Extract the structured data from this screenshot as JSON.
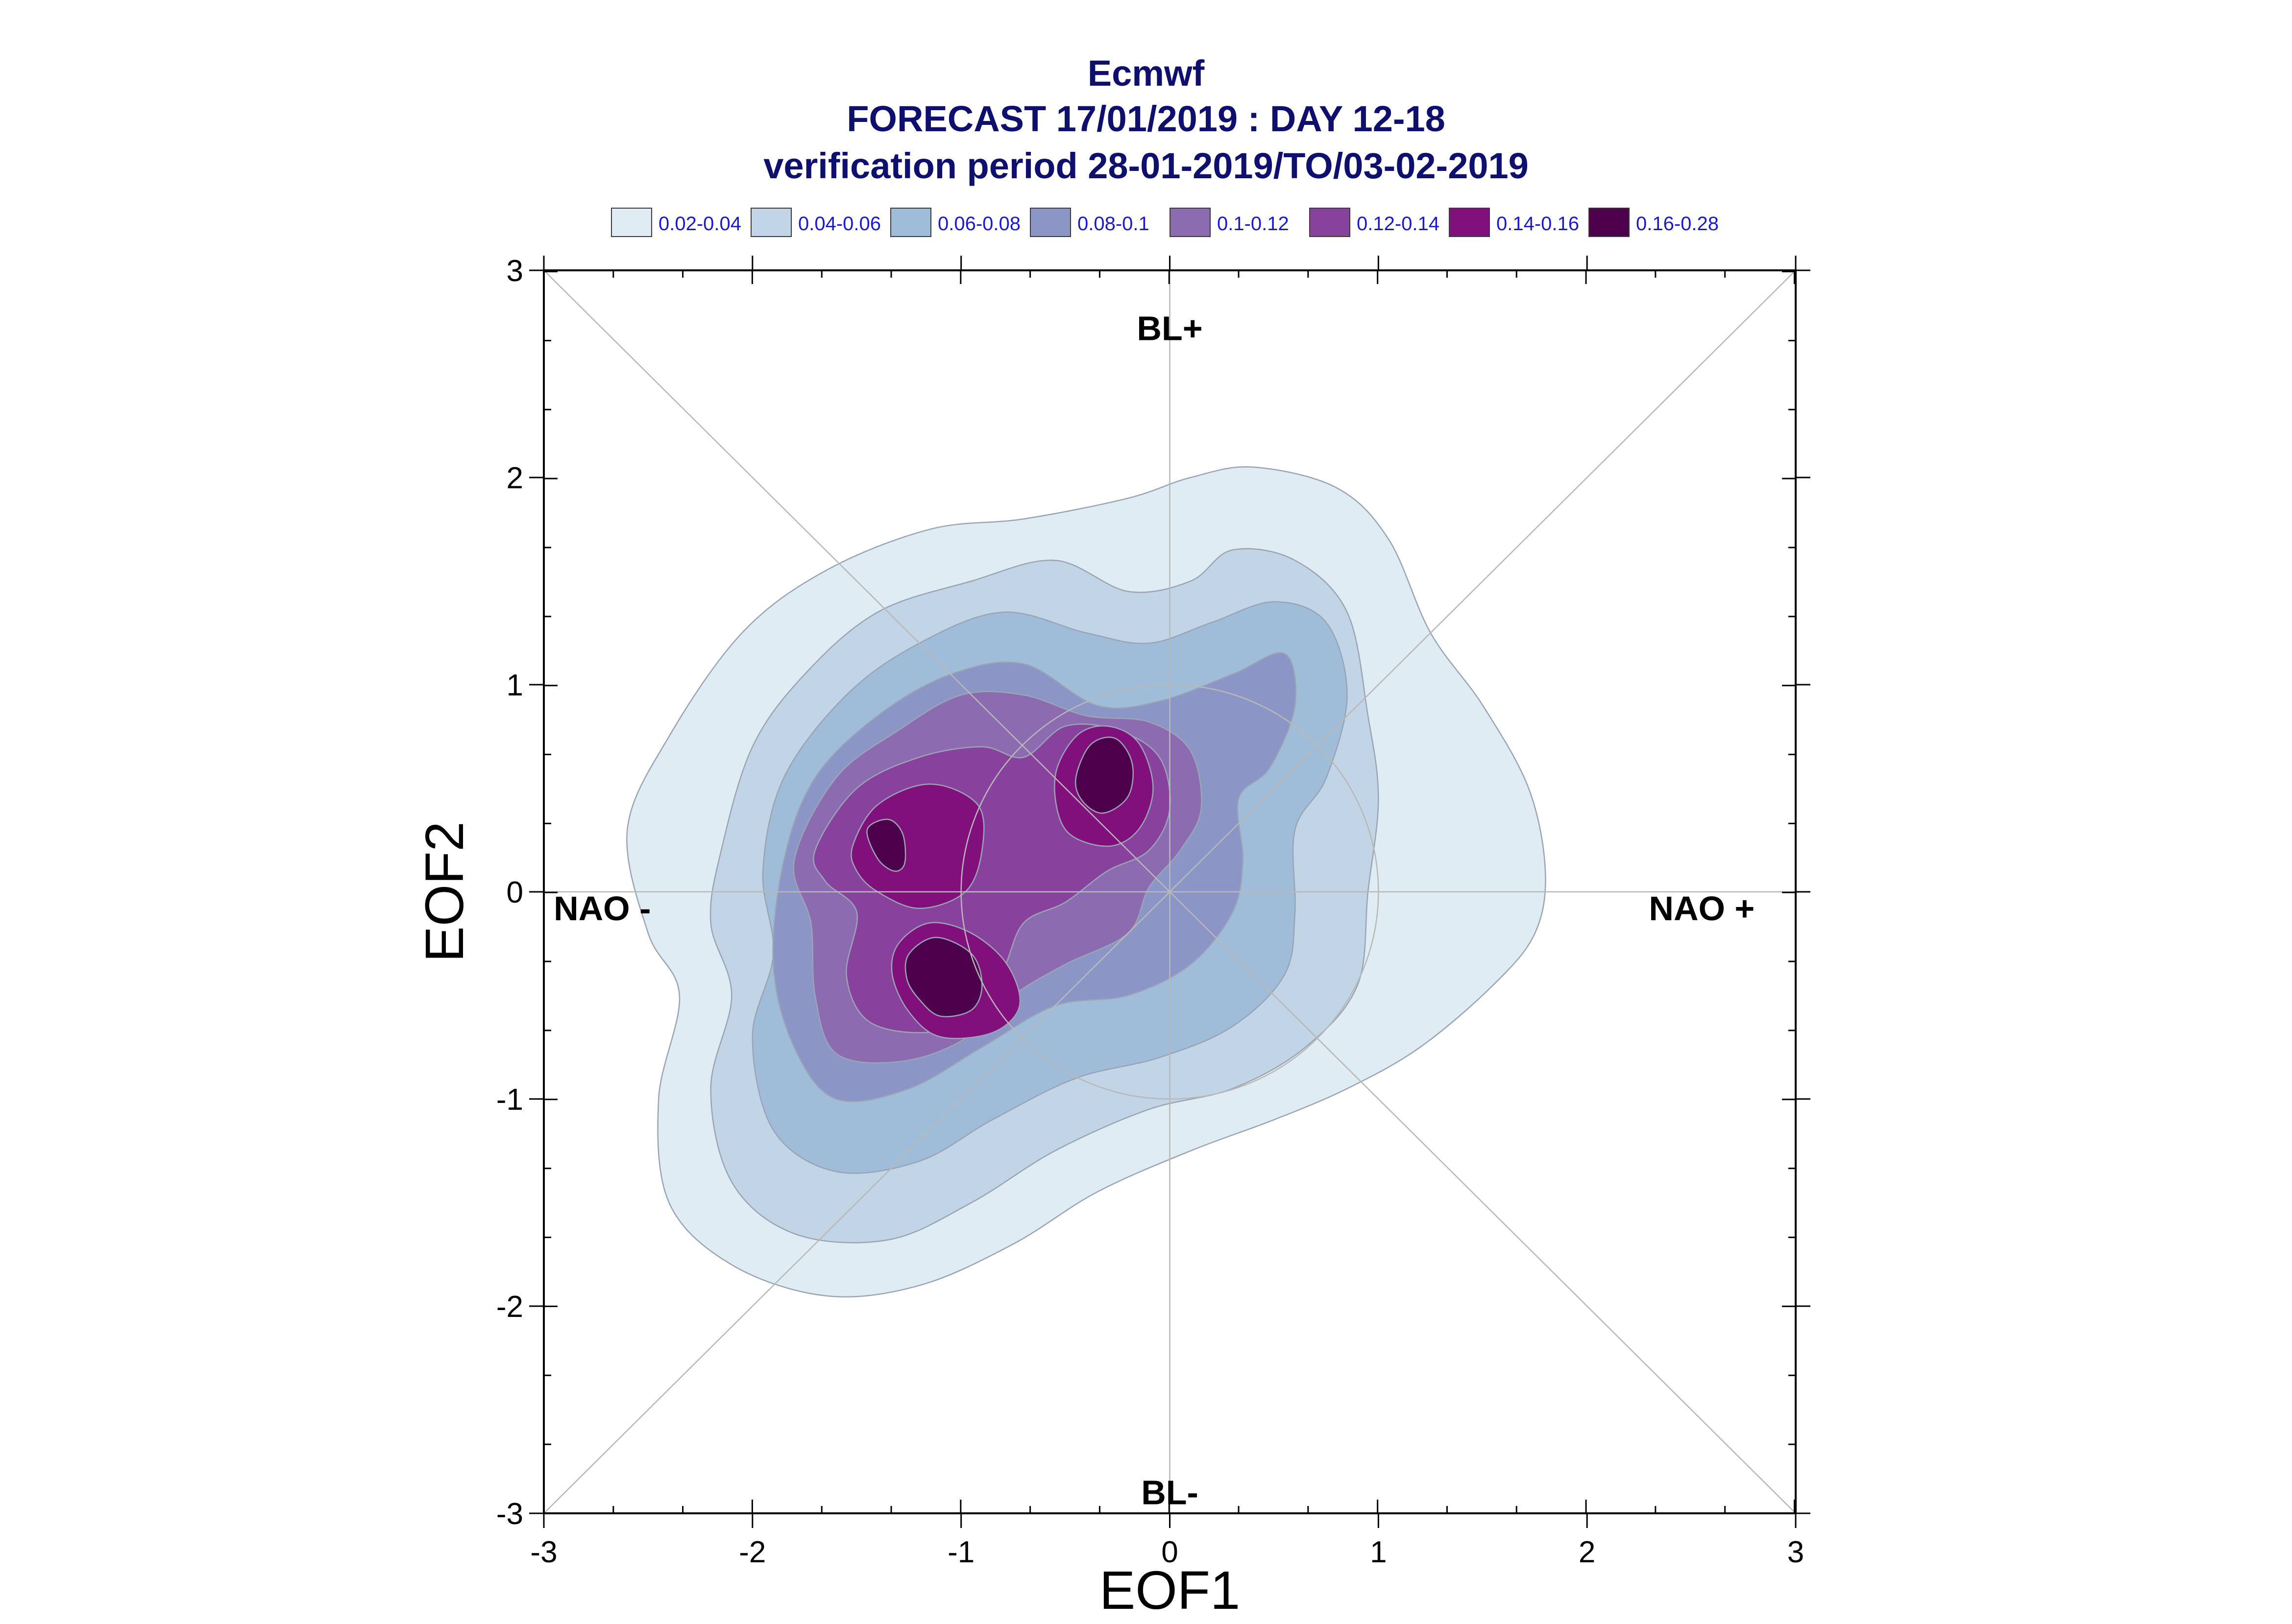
{
  "chart_data": {
    "type": "contour",
    "title_lines": [
      "Ecmwf",
      "FORECAST 17/01/2019 : DAY 12-18",
      "verification period 28-01-2019/TO/03-02-2019"
    ],
    "xlabel": "EOF1",
    "ylabel": "EOF2",
    "xlim": [
      -3,
      3
    ],
    "ylim": [
      -3,
      3
    ],
    "x_ticks": [
      -3,
      -2,
      -1,
      0,
      1,
      2,
      3
    ],
    "y_ticks": [
      -3,
      -2,
      -1,
      0,
      1,
      2,
      3
    ],
    "x_tick_labels": [
      "-3",
      "-2",
      "-1",
      "0",
      "1",
      "2",
      "3"
    ],
    "y_tick_labels": [
      "-3",
      "-2",
      "-1",
      "0",
      "1",
      "2",
      "3"
    ],
    "minor_tick_step": 0.333,
    "regime_labels": [
      {
        "text": "BL+",
        "x": 0,
        "y": 2.72
      },
      {
        "text": "BL-",
        "x": 0,
        "y": -2.9
      },
      {
        "text": "NAO -",
        "x": -2.72,
        "y": -0.08
      },
      {
        "text": "NAO +",
        "x": 2.55,
        "y": -0.08
      }
    ],
    "reference_lines": {
      "diagonals": true,
      "axes_through_origin": true,
      "circle": {
        "cx": 0,
        "cy": 0,
        "r": 1
      }
    },
    "legend": {
      "placement": "top",
      "entries": [
        {
          "label": "0.02-0.04",
          "color": "#e0ecf4"
        },
        {
          "label": "0.04-0.06",
          "color": "#c2d5e6"
        },
        {
          "label": "0.06-0.08",
          "color": "#9fbcd9"
        },
        {
          "label": "0.08-0.1",
          "color": "#8c96c6"
        },
        {
          "label": "0.1-0.12",
          "color": "#8c6bb1"
        },
        {
          "label": "0.12-0.14",
          "color": "#88419d"
        },
        {
          "label": "0.14-0.16",
          "color": "#810f7c"
        },
        {
          "label": "0.16-0.28",
          "color": "#4d004b"
        }
      ]
    },
    "contour_levels": [
      {
        "range": "0.02-0.04",
        "color": "#e0ecf4",
        "polygons": [
          [
            [
              -2.6,
              0.3
            ],
            [
              -2.4,
              0.75
            ],
            [
              -2.05,
              1.25
            ],
            [
              -1.65,
              1.55
            ],
            [
              -1.15,
              1.75
            ],
            [
              -0.7,
              1.8
            ],
            [
              -0.2,
              1.9
            ],
            [
              0.1,
              2.0
            ],
            [
              0.4,
              2.05
            ],
            [
              0.8,
              1.95
            ],
            [
              1.05,
              1.7
            ],
            [
              1.25,
              1.25
            ],
            [
              1.5,
              0.9
            ],
            [
              1.72,
              0.5
            ],
            [
              1.8,
              0.1
            ],
            [
              1.75,
              -0.2
            ],
            [
              1.55,
              -0.45
            ],
            [
              1.2,
              -0.75
            ],
            [
              0.85,
              -0.95
            ],
            [
              0.5,
              -1.1
            ],
            [
              0.1,
              -1.25
            ],
            [
              -0.35,
              -1.45
            ],
            [
              -0.75,
              -1.7
            ],
            [
              -1.2,
              -1.9
            ],
            [
              -1.65,
              -1.95
            ],
            [
              -2.1,
              -1.8
            ],
            [
              -2.4,
              -1.5
            ],
            [
              -2.45,
              -1.0
            ],
            [
              -2.35,
              -0.5
            ],
            [
              -2.5,
              -0.2
            ]
          ]
        ]
      },
      {
        "range": "0.04-0.06",
        "color": "#c2d5e6",
        "polygons": [
          [
            [
              -2.15,
              0.2
            ],
            [
              -2.0,
              0.7
            ],
            [
              -1.75,
              1.05
            ],
            [
              -1.4,
              1.35
            ],
            [
              -0.95,
              1.5
            ],
            [
              -0.55,
              1.6
            ],
            [
              -0.2,
              1.45
            ],
            [
              0.1,
              1.5
            ],
            [
              0.3,
              1.65
            ],
            [
              0.6,
              1.6
            ],
            [
              0.85,
              1.35
            ],
            [
              0.95,
              0.85
            ],
            [
              1.0,
              0.45
            ],
            [
              0.95,
              0.0
            ],
            [
              0.9,
              -0.45
            ],
            [
              0.65,
              -0.75
            ],
            [
              0.3,
              -0.95
            ],
            [
              -0.1,
              -1.05
            ],
            [
              -0.55,
              -1.25
            ],
            [
              -0.95,
              -1.5
            ],
            [
              -1.35,
              -1.68
            ],
            [
              -1.8,
              -1.65
            ],
            [
              -2.1,
              -1.4
            ],
            [
              -2.2,
              -0.95
            ],
            [
              -2.1,
              -0.5
            ],
            [
              -2.2,
              -0.15
            ]
          ]
        ]
      },
      {
        "range": "0.06-0.08",
        "color": "#9fbcd9",
        "polygons": [
          [
            [
              -1.95,
              0.1
            ],
            [
              -1.85,
              0.55
            ],
            [
              -1.55,
              0.95
            ],
            [
              -1.2,
              1.2
            ],
            [
              -0.8,
              1.35
            ],
            [
              -0.4,
              1.25
            ],
            [
              -0.1,
              1.2
            ],
            [
              0.2,
              1.3
            ],
            [
              0.5,
              1.4
            ],
            [
              0.75,
              1.3
            ],
            [
              0.85,
              0.95
            ],
            [
              0.75,
              0.55
            ],
            [
              0.6,
              0.3
            ],
            [
              0.6,
              -0.1
            ],
            [
              0.55,
              -0.4
            ],
            [
              0.3,
              -0.65
            ],
            [
              -0.05,
              -0.8
            ],
            [
              -0.45,
              -0.9
            ],
            [
              -0.85,
              -1.1
            ],
            [
              -1.2,
              -1.3
            ],
            [
              -1.6,
              -1.35
            ],
            [
              -1.9,
              -1.15
            ],
            [
              -2.0,
              -0.7
            ],
            [
              -1.9,
              -0.3
            ]
          ]
        ]
      },
      {
        "range": "0.08-0.1",
        "color": "#8c96c6",
        "polygons": [
          [
            [
              -1.85,
              0.15
            ],
            [
              -1.7,
              0.55
            ],
            [
              -1.4,
              0.85
            ],
            [
              -1.05,
              1.05
            ],
            [
              -0.7,
              1.1
            ],
            [
              -0.35,
              0.9
            ],
            [
              -0.05,
              0.92
            ],
            [
              0.3,
              1.05
            ],
            [
              0.55,
              1.15
            ],
            [
              0.6,
              0.9
            ],
            [
              0.48,
              0.6
            ],
            [
              0.33,
              0.45
            ],
            [
              0.35,
              0.15
            ],
            [
              0.3,
              -0.1
            ],
            [
              0.1,
              -0.35
            ],
            [
              -0.2,
              -0.5
            ],
            [
              -0.55,
              -0.55
            ],
            [
              -0.9,
              -0.75
            ],
            [
              -1.25,
              -0.95
            ],
            [
              -1.6,
              -1.0
            ],
            [
              -1.8,
              -0.75
            ],
            [
              -1.9,
              -0.35
            ]
          ]
        ]
      },
      {
        "range": "0.1-0.12",
        "color": "#8c6bb1",
        "polygons": [
          [
            [
              -1.8,
              0.15
            ],
            [
              -1.6,
              0.55
            ],
            [
              -1.3,
              0.78
            ],
            [
              -1.0,
              0.95
            ],
            [
              -0.7,
              0.95
            ],
            [
              -0.4,
              0.85
            ],
            [
              -0.1,
              0.82
            ],
            [
              0.1,
              0.68
            ],
            [
              0.15,
              0.4
            ],
            [
              0.05,
              0.2
            ],
            [
              -0.1,
              0.02
            ],
            [
              -0.2,
              -0.2
            ],
            [
              -0.5,
              -0.35
            ],
            [
              -0.75,
              -0.5
            ],
            [
              -1.0,
              -0.72
            ],
            [
              -1.3,
              -0.82
            ],
            [
              -1.6,
              -0.78
            ],
            [
              -1.7,
              -0.5
            ],
            [
              -1.72,
              -0.15
            ]
          ]
        ]
      },
      {
        "range": "0.12-0.14",
        "color": "#88419d",
        "polygons": [
          [
            [
              -1.7,
              0.2
            ],
            [
              -1.5,
              0.5
            ],
            [
              -1.2,
              0.65
            ],
            [
              -0.9,
              0.7
            ],
            [
              -0.7,
              0.65
            ],
            [
              -0.5,
              0.8
            ],
            [
              -0.25,
              0.78
            ],
            [
              -0.05,
              0.65
            ],
            [
              0.0,
              0.4
            ],
            [
              -0.1,
              0.2
            ],
            [
              -0.3,
              0.1
            ],
            [
              -0.5,
              -0.05
            ],
            [
              -0.7,
              -0.15
            ],
            [
              -0.8,
              -0.38
            ],
            [
              -0.95,
              -0.62
            ],
            [
              -1.2,
              -0.68
            ],
            [
              -1.45,
              -0.62
            ],
            [
              -1.55,
              -0.4
            ],
            [
              -1.5,
              -0.1
            ],
            [
              -1.65,
              0.05
            ]
          ]
        ]
      },
      {
        "range": "0.14-0.16",
        "color": "#810f7c",
        "polygons": [
          [
            [
              -1.52,
              0.22
            ],
            [
              -1.4,
              0.42
            ],
            [
              -1.15,
              0.52
            ],
            [
              -0.92,
              0.42
            ],
            [
              -0.9,
              0.2
            ],
            [
              -0.98,
              0.0
            ],
            [
              -1.2,
              -0.08
            ],
            [
              -1.4,
              0.0
            ],
            [
              -1.5,
              0.1
            ]
          ],
          [
            [
              -0.55,
              0.55
            ],
            [
              -0.45,
              0.75
            ],
            [
              -0.3,
              0.8
            ],
            [
              -0.15,
              0.72
            ],
            [
              -0.08,
              0.5
            ],
            [
              -0.15,
              0.3
            ],
            [
              -0.3,
              0.22
            ],
            [
              -0.5,
              0.3
            ]
          ],
          [
            [
              -1.3,
              -0.25
            ],
            [
              -1.15,
              -0.15
            ],
            [
              -0.95,
              -0.2
            ],
            [
              -0.78,
              -0.35
            ],
            [
              -0.72,
              -0.55
            ],
            [
              -0.85,
              -0.68
            ],
            [
              -1.1,
              -0.7
            ],
            [
              -1.25,
              -0.58
            ],
            [
              -1.33,
              -0.4
            ]
          ]
        ]
      },
      {
        "range": "0.16-0.28",
        "color": "#4d004b",
        "polygons": [
          [
            [
              -1.45,
              0.3
            ],
            [
              -1.35,
              0.35
            ],
            [
              -1.28,
              0.28
            ],
            [
              -1.27,
              0.14
            ],
            [
              -1.32,
              0.1
            ],
            [
              -1.4,
              0.16
            ]
          ],
          [
            [
              -0.45,
              0.55
            ],
            [
              -0.38,
              0.71
            ],
            [
              -0.26,
              0.74
            ],
            [
              -0.18,
              0.62
            ],
            [
              -0.2,
              0.46
            ],
            [
              -0.32,
              0.38
            ],
            [
              -0.42,
              0.44
            ]
          ],
          [
            [
              -1.25,
              -0.3
            ],
            [
              -1.12,
              -0.22
            ],
            [
              -0.95,
              -0.3
            ],
            [
              -0.9,
              -0.45
            ],
            [
              -0.95,
              -0.57
            ],
            [
              -1.1,
              -0.6
            ],
            [
              -1.2,
              -0.52
            ],
            [
              -1.26,
              -0.42
            ]
          ]
        ]
      }
    ]
  }
}
